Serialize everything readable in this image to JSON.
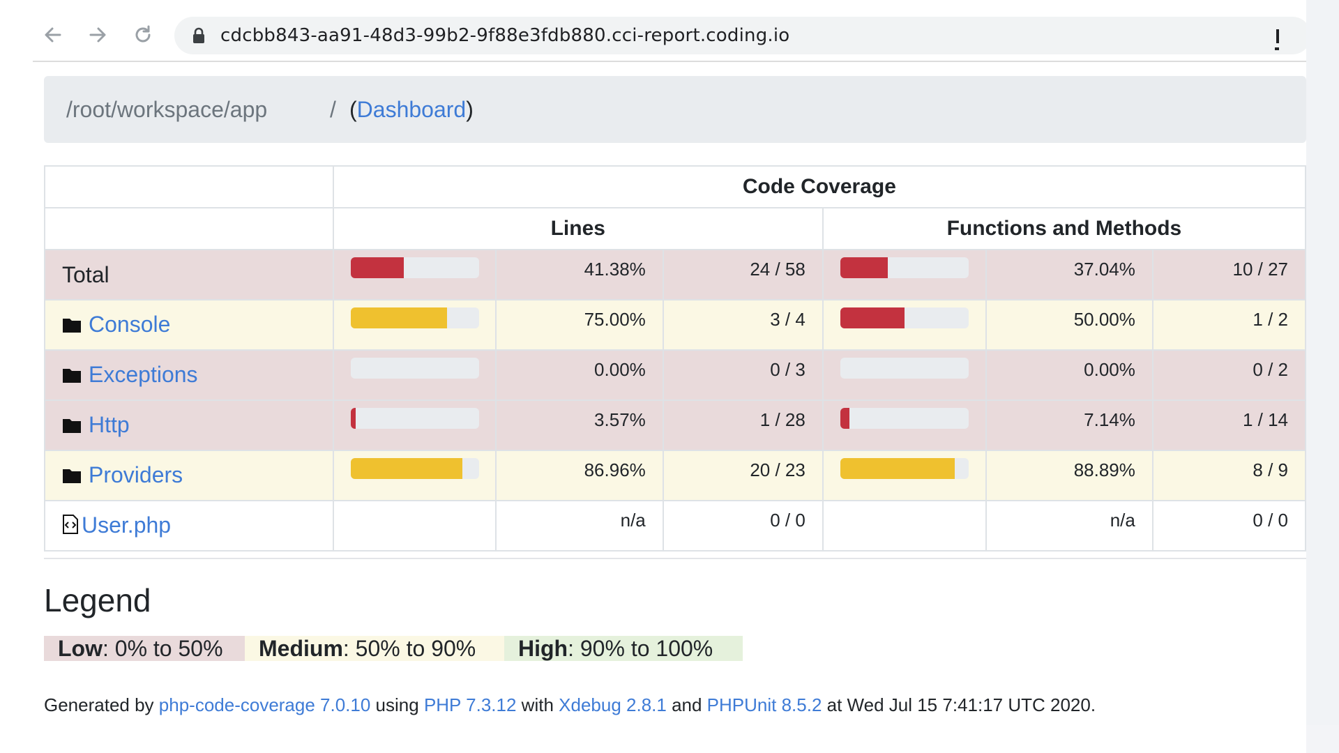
{
  "browser": {
    "url": "cdcbb843-aa91-48d3-99b2-9f88e3fdb880.cci-report.coding.io"
  },
  "breadcrumb": {
    "path": "/root/workspace/app",
    "separator": "/",
    "open": "(",
    "link": "Dashboard",
    "close": ")"
  },
  "table": {
    "header_main": "Code Coverage",
    "header_lines": "Lines",
    "header_functions": "Functions and Methods",
    "rows": [
      {
        "name": "Total",
        "kind": "total",
        "level": "low",
        "lines_fraction": 0.4138,
        "lines_pct": "41.38%",
        "lines_count": "24 / 58",
        "funcs_fraction": 0.3704,
        "funcs_pct": "37.04%",
        "funcs_count": "10 / 27",
        "lines_color": "#c3323f",
        "funcs_color": "#c3323f"
      },
      {
        "name": "Console",
        "kind": "folder",
        "level": "medium",
        "lines_fraction": 0.75,
        "lines_pct": "75.00%",
        "lines_count": "3 / 4",
        "funcs_fraction": 0.5,
        "funcs_pct": "50.00%",
        "funcs_count": "1 / 2",
        "lines_color": "#efc12f",
        "funcs_color": "#c3323f"
      },
      {
        "name": "Exceptions",
        "kind": "folder",
        "level": "low",
        "lines_fraction": 0.0,
        "lines_pct": "0.00%",
        "lines_count": "0 / 3",
        "funcs_fraction": 0.0,
        "funcs_pct": "0.00%",
        "funcs_count": "0 / 2",
        "lines_color": "#c3323f",
        "funcs_color": "#c3323f"
      },
      {
        "name": "Http",
        "kind": "folder",
        "level": "low",
        "lines_fraction": 0.0357,
        "lines_pct": "3.57%",
        "lines_count": "1 / 28",
        "funcs_fraction": 0.0714,
        "funcs_pct": "7.14%",
        "funcs_count": "1 / 14",
        "lines_color": "#c3323f",
        "funcs_color": "#c3323f"
      },
      {
        "name": "Providers",
        "kind": "folder",
        "level": "medium",
        "lines_fraction": 0.8696,
        "lines_pct": "86.96%",
        "lines_count": "20 / 23",
        "funcs_fraction": 0.8889,
        "funcs_pct": "88.89%",
        "funcs_count": "8 / 9",
        "lines_color": "#efc12f",
        "funcs_color": "#efc12f"
      },
      {
        "name": "User.php",
        "kind": "file",
        "level": "none",
        "lines_fraction": null,
        "lines_pct": "n/a",
        "lines_count": "0 / 0",
        "funcs_fraction": null,
        "funcs_pct": "n/a",
        "funcs_count": "0 / 0",
        "lines_color": "#c3323f",
        "funcs_color": "#c3323f"
      }
    ]
  },
  "legend": {
    "title": "Legend",
    "low_label": "Low",
    "low_range": ": 0% to 50%",
    "medium_label": "Medium",
    "medium_range": ": 50% to 90%",
    "high_label": "High",
    "high_range": ": 90% to 100%"
  },
  "footer": {
    "t1": "Generated by ",
    "l1": "php-code-coverage 7.0.10",
    "t2": " using ",
    "l2": "PHP 7.3.12",
    "t3": " with ",
    "l3": "Xdebug 2.8.1",
    "t4": " and ",
    "l4": "PHPUnit 8.5.2",
    "t5": " at Wed Jul 15 7:41:17 UTC 2020."
  }
}
